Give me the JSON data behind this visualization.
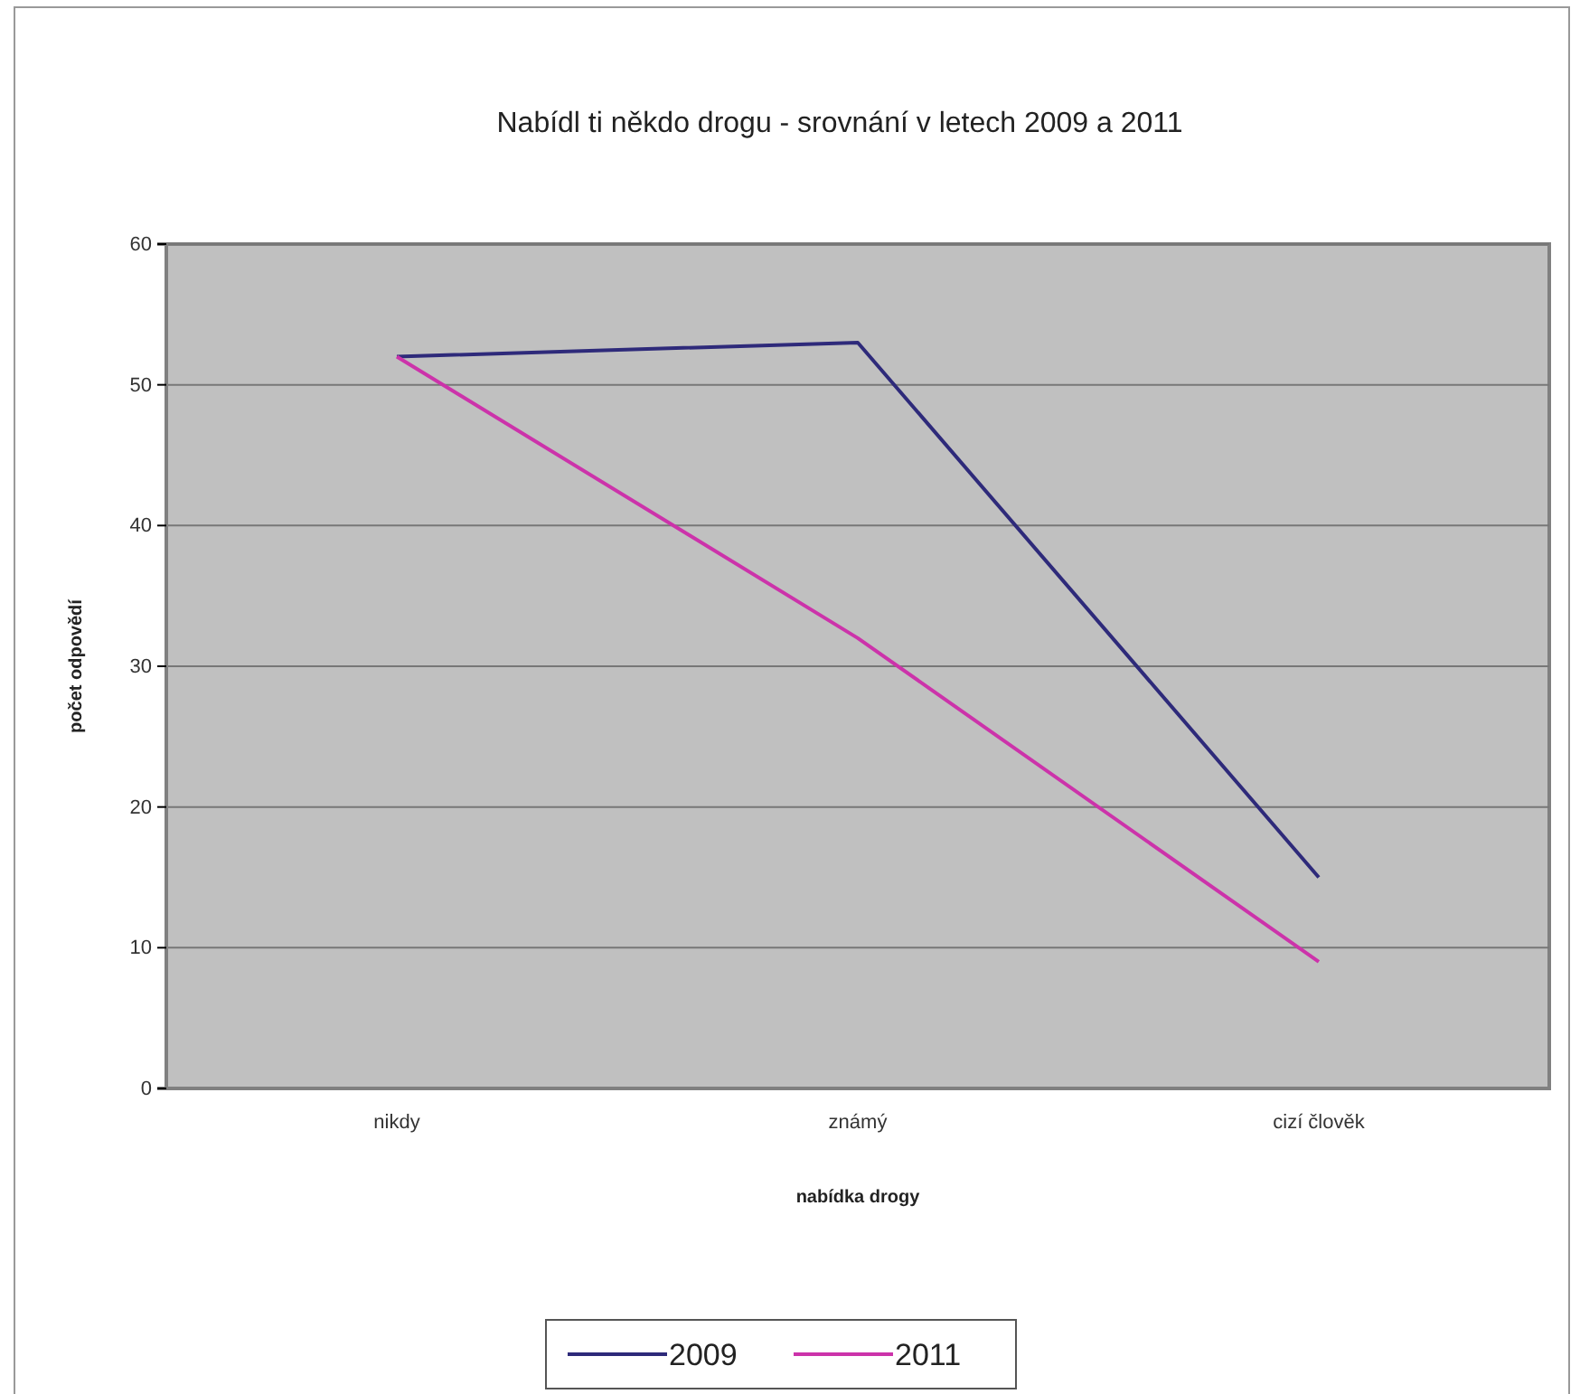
{
  "chart_data": {
    "type": "line",
    "title": "Nabídl ti někdo drogu - srovnání v letech 2009 a 2011",
    "xlabel": "nabídka drogy",
    "ylabel": "počet odpovědí",
    "categories": [
      "nikdy",
      "známý",
      "cizí člověk"
    ],
    "series": [
      {
        "name": "2009",
        "color": "#2e2a7a",
        "values": [
          52,
          53,
          15
        ]
      },
      {
        "name": "2011",
        "color": "#cc33aa",
        "values": [
          52,
          32,
          9
        ]
      }
    ],
    "ylim": [
      0,
      60
    ],
    "yticks": [
      0,
      10,
      20,
      30,
      40,
      50,
      60
    ],
    "grid": "y",
    "legend": "bottom",
    "marker": "none",
    "line_style": "solid"
  }
}
